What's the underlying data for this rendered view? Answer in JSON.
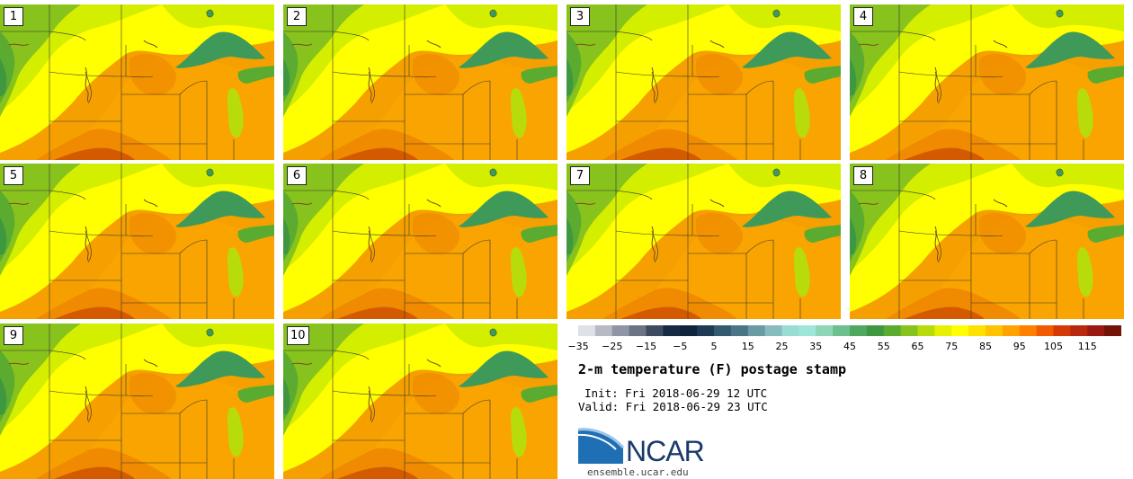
{
  "panels": [
    {
      "label": "1"
    },
    {
      "label": "2"
    },
    {
      "label": "3"
    },
    {
      "label": "4"
    },
    {
      "label": "5"
    },
    {
      "label": "6"
    },
    {
      "label": "7"
    },
    {
      "label": "8"
    },
    {
      "label": "9"
    },
    {
      "label": "10"
    }
  ],
  "colorbar": {
    "ticks": [
      "−35",
      "−25",
      "−15",
      "−5",
      "5",
      "15",
      "25",
      "35",
      "45",
      "55",
      "65",
      "75",
      "85",
      "95",
      "105",
      "115"
    ],
    "colors": [
      "#dfe1e8",
      "#b7bac5",
      "#8f95a4",
      "#6b7385",
      "#3e4a60",
      "#162a44",
      "#10243e",
      "#1f3a55",
      "#345a70",
      "#4a7585",
      "#6a9aa4",
      "#87bcbf",
      "#99dcd4",
      "#9ee6d8",
      "#8ed6b5",
      "#6cc08d",
      "#4fa860",
      "#3f9740",
      "#5aab30",
      "#88c21d",
      "#b8db0c",
      "#e6f000",
      "#ffff00",
      "#ffe100",
      "#ffc300",
      "#ffa300",
      "#ff8000",
      "#f05a00",
      "#d43a05",
      "#b8280e",
      "#9a1a12",
      "#741408"
    ]
  },
  "title": "2-m temperature (F) postage stamp",
  "init": "Init: Fri 2018-06-29 12 UTC",
  "valid": "Valid: Fri 2018-06-29 23 UTC",
  "logo": {
    "text": "NCAR",
    "site": "ensemble.ucar.edu"
  },
  "palette": {
    "hot": "#f08a00",
    "warm": "#fba800",
    "yellow": "#ffff00",
    "lime": "#d4ee00",
    "green": "#88c21d",
    "lake": "#3f9a5a",
    "dark": "#d45a00"
  }
}
